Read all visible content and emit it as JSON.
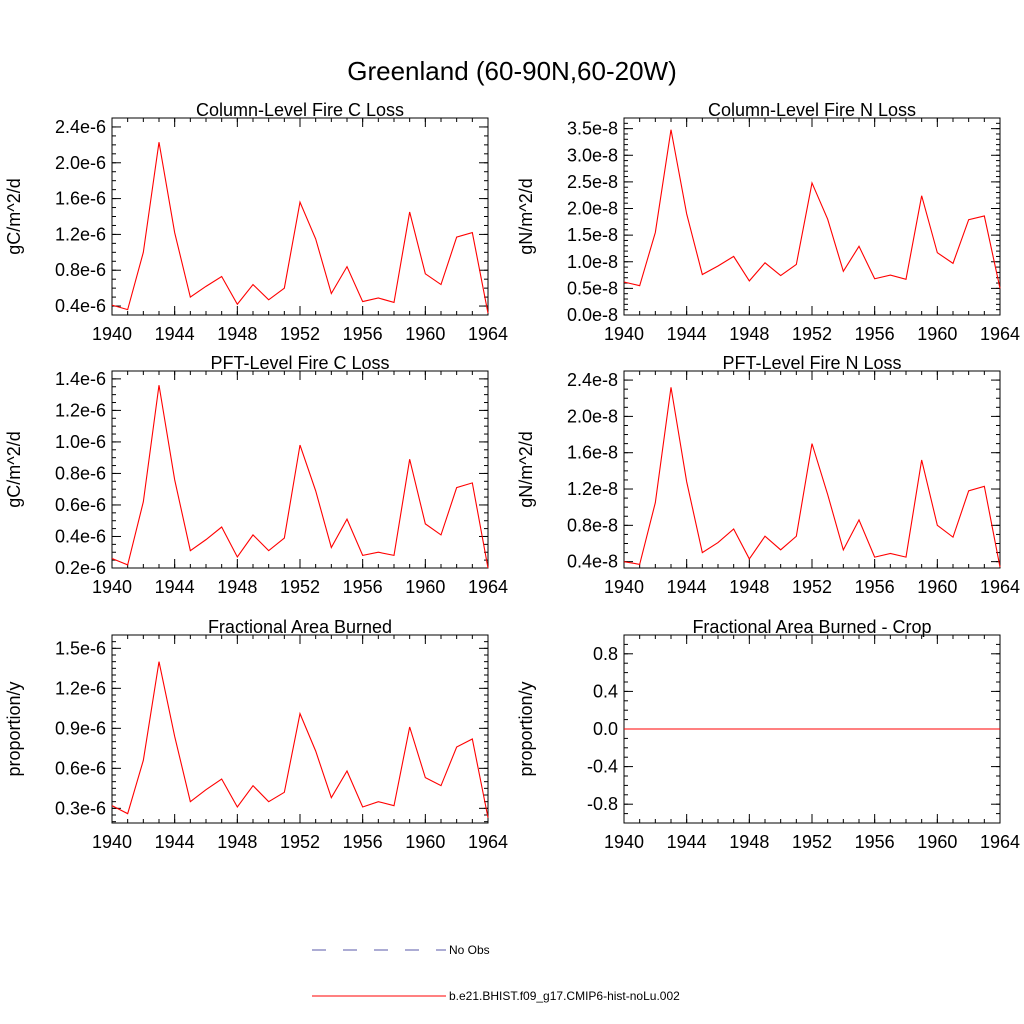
{
  "figure": {
    "title": "Greenland (60-90N,60-20W)",
    "line_color": "#ff0000",
    "obs_color": "#5a5aa8"
  },
  "legend": {
    "items": [
      {
        "label": "No Obs",
        "style": "dashed",
        "color": "#5a5aa8"
      },
      {
        "label": "b.e21.BHIST.f09_g17.CMIP6-hist-noLu.002",
        "style": "solid",
        "color": "#ff0000"
      }
    ]
  },
  "chart_data": [
    {
      "type": "line",
      "title": "Column-Level Fire C Loss",
      "ylabel": "gC/m^2/d",
      "xlim": [
        1940,
        1964
      ],
      "ylim": [
        3e-07,
        2.5e-06
      ],
      "xticks": [
        1940,
        1944,
        1948,
        1952,
        1956,
        1960,
        1964
      ],
      "xtick_labels": [
        "1940",
        "1944",
        "1948",
        "1952",
        "1956",
        "1960",
        "1964"
      ],
      "yticks": [
        4e-07,
        8e-07,
        1.2e-06,
        1.6e-06,
        2e-06,
        2.4e-06
      ],
      "ytick_labels": [
        "0.4e-6",
        "0.8e-6",
        "1.2e-6",
        "1.6e-6",
        "2.0e-6",
        "2.4e-6"
      ],
      "yminor_step": 1e-07,
      "x": [
        1940,
        1941,
        1942,
        1943,
        1944,
        1945,
        1946,
        1947,
        1948,
        1949,
        1950,
        1951,
        1952,
        1953,
        1954,
        1955,
        1956,
        1957,
        1958,
        1959,
        1960,
        1961,
        1962,
        1963,
        1964
      ],
      "series": [
        {
          "values": [
            4.1e-07,
            3.6e-07,
            1e-06,
            2.23e-06,
            1.22e-06,
            5e-07,
            6.2e-07,
            7.3e-07,
            4.2e-07,
            6.4e-07,
            4.7e-07,
            6e-07,
            1.56e-06,
            1.15e-06,
            5.4e-07,
            8.4e-07,
            4.5e-07,
            4.9e-07,
            4.4e-07,
            1.45e-06,
            7.6e-07,
            6.4e-07,
            1.17e-06,
            1.22e-06,
            3.2e-07
          ]
        }
      ]
    },
    {
      "type": "line",
      "title": "Column-Level Fire N Loss",
      "ylabel": "gN/m^2/d",
      "xlim": [
        1940,
        1964
      ],
      "ylim": [
        0,
        3.7e-08
      ],
      "xticks": [
        1940,
        1944,
        1948,
        1952,
        1956,
        1960,
        1964
      ],
      "xtick_labels": [
        "1940",
        "1944",
        "1948",
        "1952",
        "1956",
        "1960",
        "1964"
      ],
      "yticks": [
        0,
        5e-09,
        1e-08,
        1.5e-08,
        2e-08,
        2.5e-08,
        3e-08,
        3.5e-08
      ],
      "ytick_labels": [
        "0.0e-8",
        "0.5e-8",
        "1.0e-8",
        "1.5e-8",
        "2.0e-8",
        "2.5e-8",
        "3.0e-8",
        "3.5e-8"
      ],
      "yminor_step": 1e-09,
      "x": [
        1940,
        1941,
        1942,
        1943,
        1944,
        1945,
        1946,
        1947,
        1948,
        1949,
        1950,
        1951,
        1952,
        1953,
        1954,
        1955,
        1956,
        1957,
        1958,
        1959,
        1960,
        1961,
        1962,
        1963,
        1964
      ],
      "series": [
        {
          "values": [
            6.2e-09,
            5.5e-09,
            1.55e-08,
            3.48e-08,
            1.9e-08,
            7.6e-09,
            9.2e-09,
            1.1e-08,
            6.4e-09,
            9.8e-09,
            7.4e-09,
            9.5e-09,
            2.48e-08,
            1.8e-08,
            8.2e-09,
            1.29e-08,
            6.8e-09,
            7.5e-09,
            6.7e-09,
            2.24e-08,
            1.17e-08,
            9.7e-09,
            1.79e-08,
            1.86e-08,
            5e-09
          ]
        }
      ]
    },
    {
      "type": "line",
      "title": "PFT-Level Fire C Loss",
      "ylabel": "gC/m^2/d",
      "xlim": [
        1940,
        1964
      ],
      "ylim": [
        2e-07,
        1.45e-06
      ],
      "xticks": [
        1940,
        1944,
        1948,
        1952,
        1956,
        1960,
        1964
      ],
      "xtick_labels": [
        "1940",
        "1944",
        "1948",
        "1952",
        "1956",
        "1960",
        "1964"
      ],
      "yticks": [
        2e-07,
        4e-07,
        6e-07,
        8e-07,
        1e-06,
        1.2e-06,
        1.4e-06
      ],
      "ytick_labels": [
        "0.2e-6",
        "0.4e-6",
        "0.6e-6",
        "0.8e-6",
        "1.0e-6",
        "1.2e-6",
        "1.4e-6"
      ],
      "yminor_step": 5e-08,
      "x": [
        1940,
        1941,
        1942,
        1943,
        1944,
        1945,
        1946,
        1947,
        1948,
        1949,
        1950,
        1951,
        1952,
        1953,
        1954,
        1955,
        1956,
        1957,
        1958,
        1959,
        1960,
        1961,
        1962,
        1963,
        1964
      ],
      "series": [
        {
          "values": [
            2.6e-07,
            2.2e-07,
            6.2e-07,
            1.36e-06,
            7.6e-07,
            3.1e-07,
            3.8e-07,
            4.6e-07,
            2.7e-07,
            4.1e-07,
            3.1e-07,
            3.9e-07,
            9.8e-07,
            6.9e-07,
            3.3e-07,
            5.1e-07,
            2.8e-07,
            3e-07,
            2.8e-07,
            8.9e-07,
            4.8e-07,
            4.1e-07,
            7.1e-07,
            7.4e-07,
            2e-07
          ]
        }
      ]
    },
    {
      "type": "line",
      "title": "PFT-Level Fire N Loss",
      "ylabel": "gN/m^2/d",
      "xlim": [
        1940,
        1964
      ],
      "ylim": [
        3.3e-09,
        2.5e-08
      ],
      "xticks": [
        1940,
        1944,
        1948,
        1952,
        1956,
        1960,
        1964
      ],
      "xtick_labels": [
        "1940",
        "1944",
        "1948",
        "1952",
        "1956",
        "1960",
        "1964"
      ],
      "yticks": [
        4e-09,
        8e-09,
        1.2e-08,
        1.6e-08,
        2e-08,
        2.4e-08
      ],
      "ytick_labels": [
        "0.4e-8",
        "0.8e-8",
        "1.2e-8",
        "1.6e-8",
        "2.0e-8",
        "2.4e-8"
      ],
      "yminor_step": 1e-09,
      "x": [
        1940,
        1941,
        1942,
        1943,
        1944,
        1945,
        1946,
        1947,
        1948,
        1949,
        1950,
        1951,
        1952,
        1953,
        1954,
        1955,
        1956,
        1957,
        1958,
        1959,
        1960,
        1961,
        1962,
        1963,
        1964
      ],
      "series": [
        {
          "values": [
            4e-09,
            3.7e-09,
            1.05e-08,
            2.32e-08,
            1.28e-08,
            5e-09,
            6.1e-09,
            7.6e-09,
            4.3e-09,
            6.8e-09,
            5.3e-09,
            6.8e-09,
            1.7e-08,
            1.14e-08,
            5.3e-09,
            8.6e-09,
            4.5e-09,
            4.9e-09,
            4.5e-09,
            1.52e-08,
            8e-09,
            6.7e-09,
            1.18e-08,
            1.23e-08,
            3.4e-09
          ]
        }
      ]
    },
    {
      "type": "line",
      "title": "Fractional Area Burned",
      "ylabel": "proportion/y",
      "xlim": [
        1940,
        1964
      ],
      "ylim": [
        1.9e-07,
        1.6e-06
      ],
      "xticks": [
        1940,
        1944,
        1948,
        1952,
        1956,
        1960,
        1964
      ],
      "xtick_labels": [
        "1940",
        "1944",
        "1948",
        "1952",
        "1956",
        "1960",
        "1964"
      ],
      "yticks": [
        3e-07,
        6e-07,
        9e-07,
        1.2e-06,
        1.5e-06
      ],
      "ytick_labels": [
        "0.3e-6",
        "0.6e-6",
        "0.9e-6",
        "1.2e-6",
        "1.5e-6"
      ],
      "yminor_step": 5e-08,
      "x": [
        1940,
        1941,
        1942,
        1943,
        1944,
        1945,
        1946,
        1947,
        1948,
        1949,
        1950,
        1951,
        1952,
        1953,
        1954,
        1955,
        1956,
        1957,
        1958,
        1959,
        1960,
        1961,
        1962,
        1963,
        1964
      ],
      "series": [
        {
          "values": [
            3.2e-07,
            2.6e-07,
            6.6e-07,
            1.4e-06,
            8.4e-07,
            3.5e-07,
            4.4e-07,
            5.2e-07,
            3.1e-07,
            4.7e-07,
            3.5e-07,
            4.2e-07,
            1.01e-06,
            7.3e-07,
            3.8e-07,
            5.8e-07,
            3.1e-07,
            3.5e-07,
            3.2e-07,
            9.1e-07,
            5.3e-07,
            4.7e-07,
            7.6e-07,
            8.2e-07,
            2.3e-07
          ]
        }
      ]
    },
    {
      "type": "line",
      "title": "Fractional Area Burned - Crop",
      "ylabel": "proportion/y",
      "xlim": [
        1940,
        1964
      ],
      "ylim": [
        -1.0,
        1.0
      ],
      "xticks": [
        1940,
        1944,
        1948,
        1952,
        1956,
        1960,
        1964
      ],
      "xtick_labels": [
        "1940",
        "1944",
        "1948",
        "1952",
        "1956",
        "1960",
        "1964"
      ],
      "yticks": [
        -0.8,
        -0.4,
        0.0,
        0.4,
        0.8
      ],
      "ytick_labels": [
        "-0.8",
        "-0.4",
        "0.0",
        "0.4",
        "0.8"
      ],
      "yminor_step": 0.1,
      "x": [
        1940,
        1941,
        1942,
        1943,
        1944,
        1945,
        1946,
        1947,
        1948,
        1949,
        1950,
        1951,
        1952,
        1953,
        1954,
        1955,
        1956,
        1957,
        1958,
        1959,
        1960,
        1961,
        1962,
        1963,
        1964
      ],
      "series": [
        {
          "values": [
            0,
            0,
            0,
            0,
            0,
            0,
            0,
            0,
            0,
            0,
            0,
            0,
            0,
            0,
            0,
            0,
            0,
            0,
            0,
            0,
            0,
            0,
            0,
            0,
            0
          ]
        }
      ]
    }
  ]
}
